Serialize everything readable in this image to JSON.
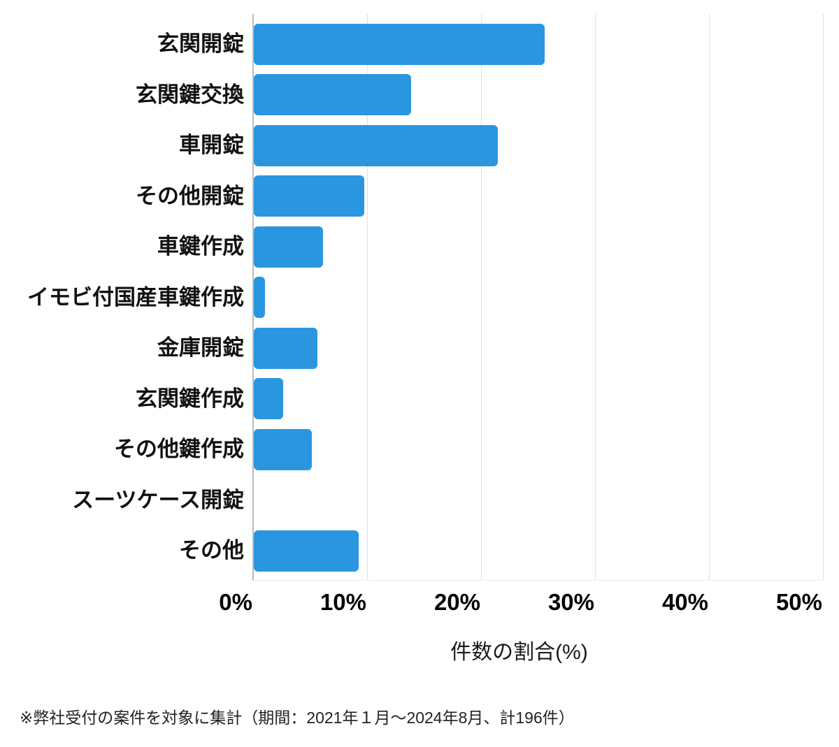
{
  "chart_data": {
    "type": "bar",
    "orientation": "horizontal",
    "title": "",
    "xlabel": "件数の割合(%)",
    "ylabel": "",
    "categories": [
      "玄関開錠",
      "玄関鍵交換",
      "車開錠",
      "その他開錠",
      "車鍵作成",
      "イモビ付国産車鍵作成",
      "金庫開錠",
      "玄関鍵作成",
      "その他鍵作成",
      "スーツケース開錠",
      "その他"
    ],
    "values": [
      25.5,
      13.8,
      21.4,
      9.7,
      6.1,
      1.0,
      5.6,
      2.6,
      5.1,
      0,
      9.2
    ],
    "unit": "%",
    "xlim": [
      0,
      50
    ],
    "xticks": [
      "0%",
      "10%",
      "20%",
      "30%",
      "40%",
      "50%"
    ],
    "xtick_values": [
      0,
      10,
      20,
      30,
      40,
      50
    ],
    "grid": "vertical-only",
    "legend": "none",
    "bar_color": "#2B96E0"
  },
  "footnote": "※弊社受付の案件を対象に集計（期間：2021年１月～2024年8月、計196件）",
  "colors": {
    "bar": "#2B96E0",
    "axis_line": "#bdbdbd",
    "gridline": "#e1e1e1",
    "background": "#ffffff",
    "text": "#111111"
  }
}
